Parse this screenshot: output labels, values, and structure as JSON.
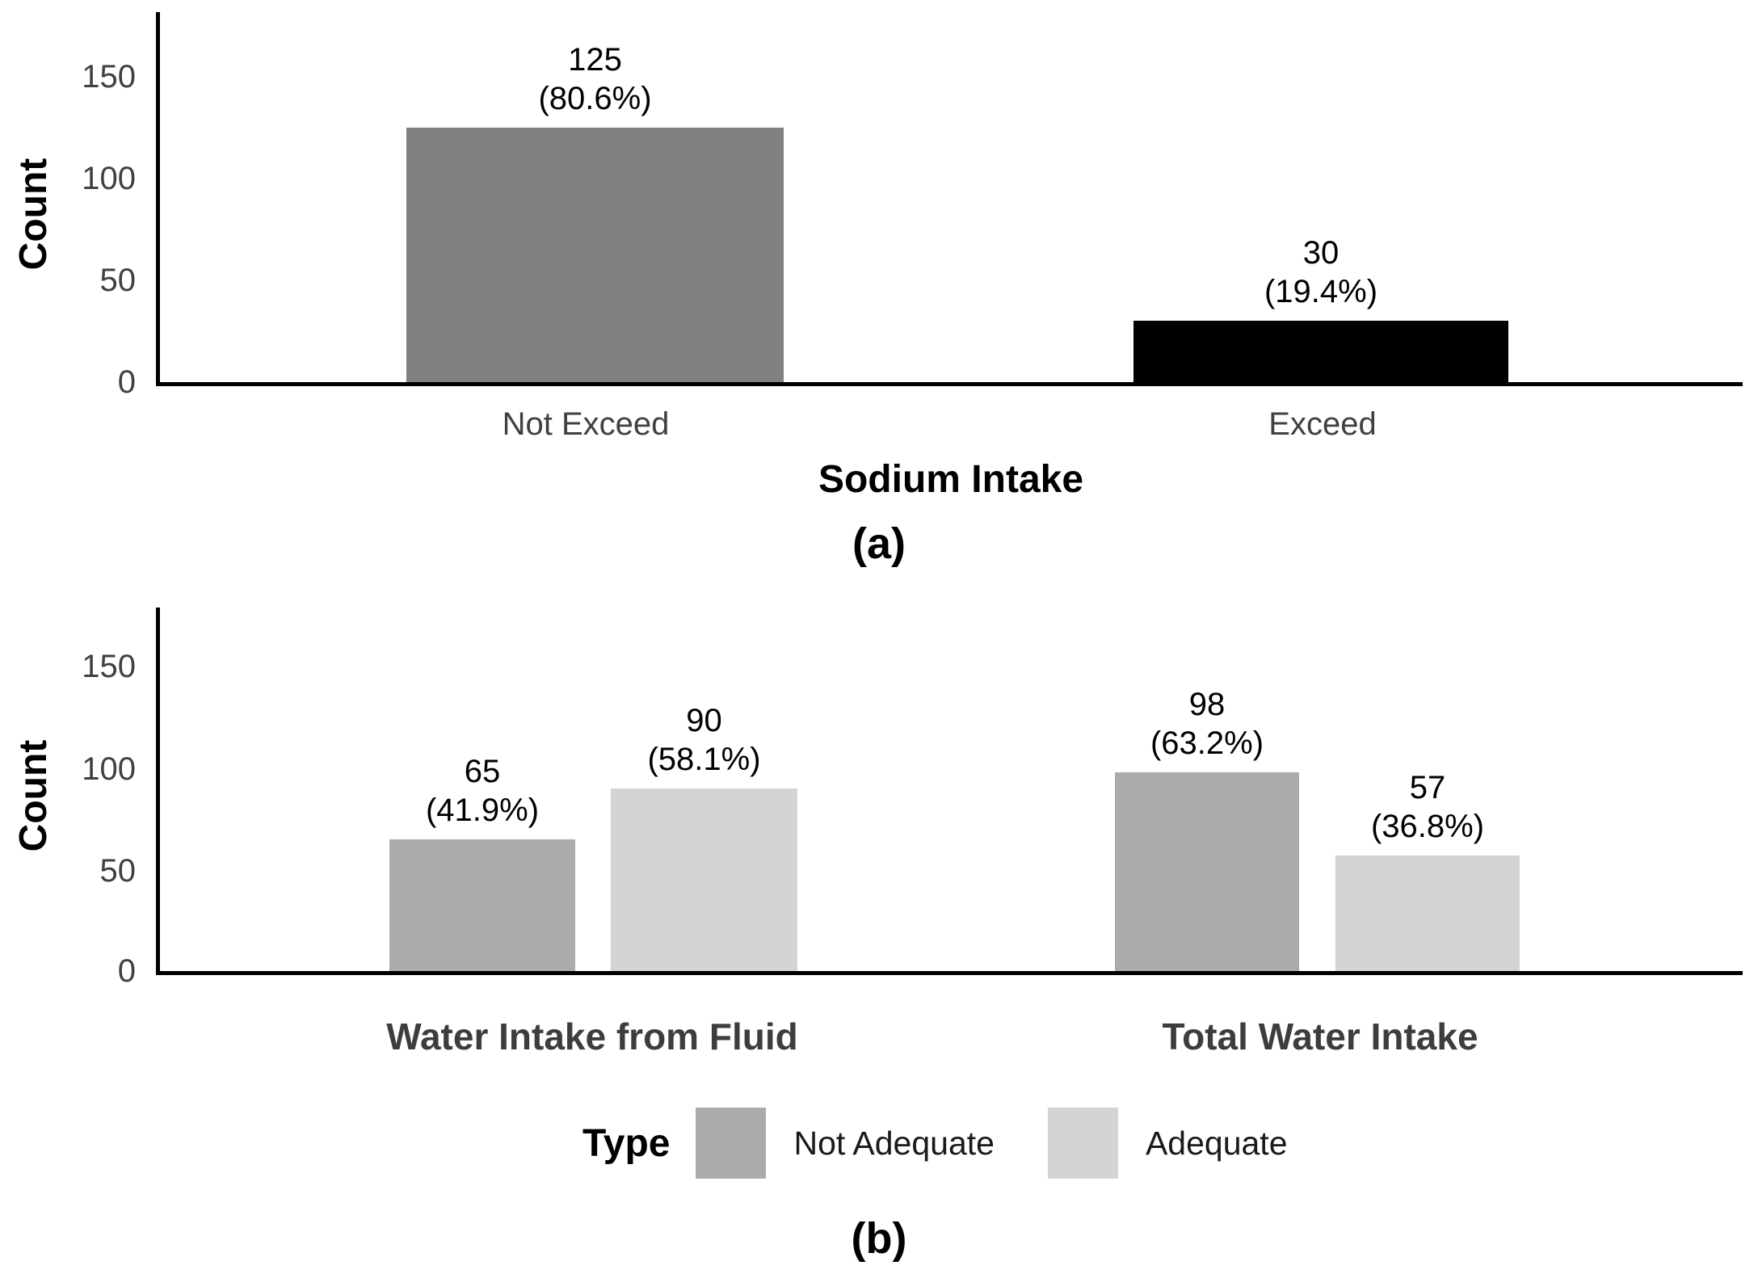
{
  "figure": {
    "background": "#ffffff",
    "caption_a": "(a)",
    "caption_b": "(b)"
  },
  "chart_data": [
    {
      "id": "a",
      "type": "bar",
      "title": "",
      "xlabel": "Sodium Intake",
      "ylabel": "Count",
      "ylim": [
        0,
        178
      ],
      "yticks": [
        0,
        50,
        100,
        150
      ],
      "grid": false,
      "legend_position": "none",
      "categories": [
        "Not Exceed",
        "Exceed"
      ],
      "values": [
        125,
        30
      ],
      "percent_labels": [
        "(80.6%)",
        "(19.4%)"
      ],
      "bar_colors": [
        "#808080",
        "#000000"
      ]
    },
    {
      "id": "b",
      "type": "bar",
      "title": "",
      "xlabel": "",
      "ylabel": "Count",
      "ylim": [
        0,
        178
      ],
      "yticks": [
        0,
        50,
        100,
        150
      ],
      "grid": false,
      "legend_position": "bottom",
      "legend_title": "Type",
      "categories": [
        "Water Intake from Fluid",
        "Total Water Intake"
      ],
      "series": [
        {
          "name": "Not Adequate",
          "color": "#ababab",
          "values": [
            65,
            98
          ],
          "percent_labels": [
            "(41.9%)",
            "(63.2%)"
          ]
        },
        {
          "name": "Adequate",
          "color": "#d4d4d4",
          "values": [
            90,
            57
          ],
          "percent_labels": [
            "(58.1%)",
            "(36.8%)"
          ]
        }
      ]
    }
  ]
}
